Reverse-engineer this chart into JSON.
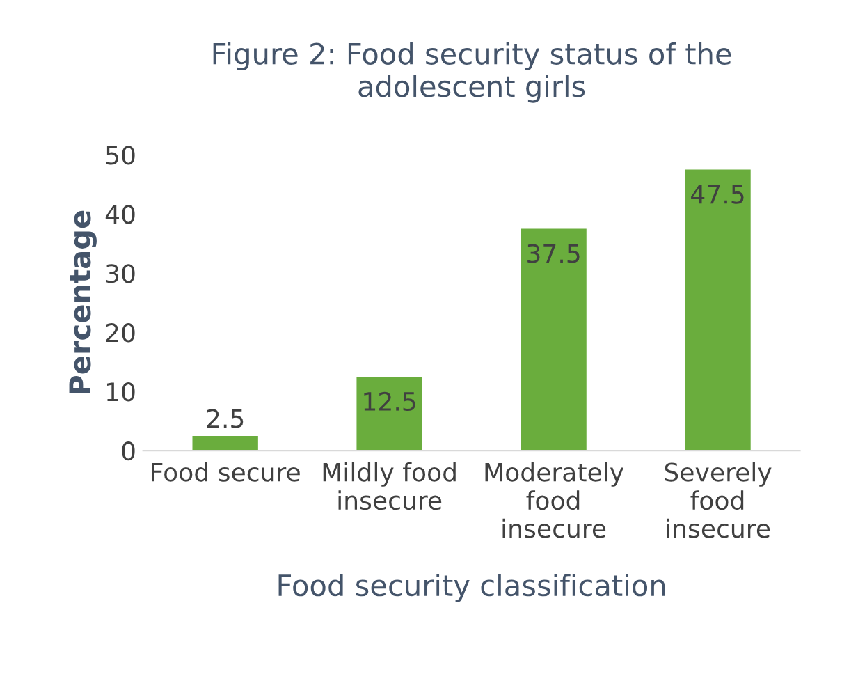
{
  "chart_data": {
    "type": "bar",
    "title": "Figure 2: Food security status of the\nadolescent girls",
    "xlabel": "Food security classification",
    "ylabel": "Percentage",
    "categories": [
      "Food secure",
      "Mildly food insecure",
      "Moderately food insecure",
      "Severely food insecure"
    ],
    "values": [
      2.5,
      12.5,
      37.5,
      47.5
    ],
    "color": "#6aad3d",
    "ylim": [
      0,
      50
    ],
    "yticks": [
      0,
      10,
      20,
      30,
      40,
      50
    ],
    "grid": false,
    "data_labels": true
  }
}
